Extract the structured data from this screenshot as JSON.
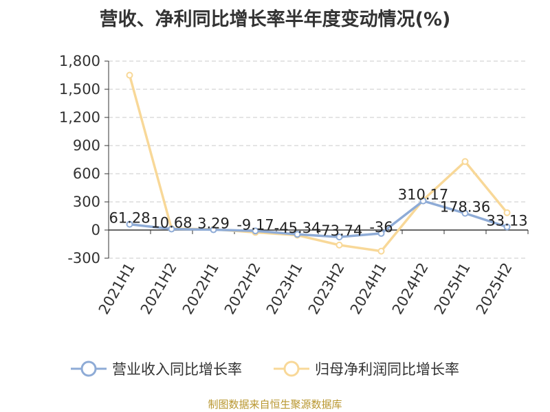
{
  "chart_data": {
    "type": "line",
    "title": "营收、净利同比增长率半年度变动情况(%)",
    "categories": [
      "2021H1",
      "2021H2",
      "2022H1",
      "2022H2",
      "2023H1",
      "2023H2",
      "2024H1",
      "2024H2",
      "2025H1",
      "2025H2"
    ],
    "series": [
      {
        "name": "营业收入同比增长率",
        "color": "#8eabd6",
        "values": [
          61.28,
          10.68,
          3.29,
          -9.17,
          -45.34,
          -73.74,
          -36,
          310.17,
          178.36,
          33.13
        ],
        "labels": [
          "61.28",
          "10.68",
          "3.29",
          "-9.17",
          "-45.34",
          "-73.74",
          "-36",
          "310.17",
          "178.36",
          "33.13"
        ]
      },
      {
        "name": "归母净利润同比增长率",
        "color": "#f8d898",
        "values": [
          1650,
          15,
          8,
          -25,
          -55,
          -160,
          -225,
          320,
          730,
          185
        ]
      }
    ],
    "y_ticks": [
      "1,800",
      "1,500",
      "1,200",
      "900",
      "600",
      "300",
      "0",
      "-300"
    ],
    "ylim": [
      -300,
      1800
    ],
    "grid": true,
    "legend_position": "bottom"
  },
  "source": "制图数据来自恒生聚源数据库"
}
